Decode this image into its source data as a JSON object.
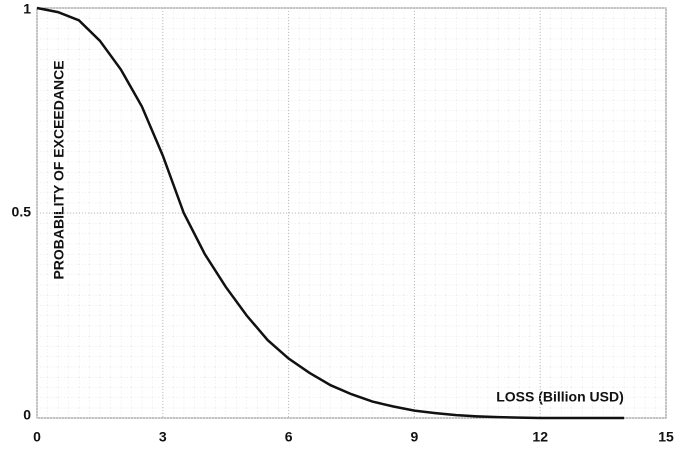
{
  "chart_data": {
    "type": "line",
    "x_label": "LOSS (Billion USD)",
    "y_label": "PROBABILITY OF EXCEEDANCE",
    "x": [
      0,
      0.5,
      1,
      1.5,
      2,
      2.5,
      3,
      3.5,
      4,
      4.5,
      5,
      5.5,
      6,
      6.5,
      7,
      7.5,
      8,
      8.5,
      9,
      9.5,
      10,
      10.5,
      11,
      11.5,
      12,
      12.5,
      13,
      13.5,
      14
    ],
    "series": [
      {
        "color": "#111111",
        "values": [
          1.0,
          0.99,
          0.97,
          0.92,
          0.85,
          0.76,
          0.64,
          0.5,
          0.4,
          0.32,
          0.25,
          0.19,
          0.145,
          0.11,
          0.08,
          0.058,
          0.04,
          0.028,
          0.018,
          0.012,
          0.007,
          0.004,
          0.002,
          0.001,
          0,
          0,
          0,
          0,
          0
        ]
      }
    ],
    "xlim": [
      0,
      15
    ],
    "xticks": [
      0,
      3,
      6,
      9,
      12,
      15
    ],
    "ylim": [
      0,
      1
    ],
    "yticks": [
      0,
      0.5,
      1
    ],
    "grid": true
  }
}
